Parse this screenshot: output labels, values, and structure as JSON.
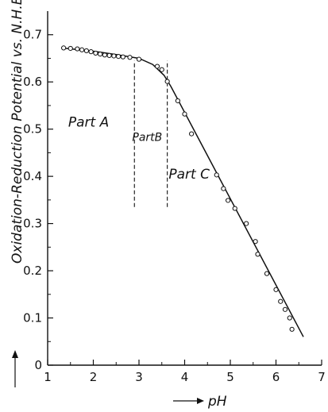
{
  "chart_data": {
    "type": "scatter",
    "xlabel": "pH",
    "ylabel": "Oxidation-Reduction Potential vs. N.H.E.(volt)",
    "xlim": [
      1,
      7
    ],
    "ylim": [
      0,
      0.75
    ],
    "x_ticks": [
      1,
      2,
      3,
      4,
      5,
      6,
      7
    ],
    "y_ticks": [
      0,
      0.1,
      0.2,
      0.3,
      0.4,
      0.5,
      0.6,
      0.7
    ],
    "grid": false,
    "points": [
      {
        "x": 1.35,
        "y": 0.672
      },
      {
        "x": 1.5,
        "y": 0.671
      },
      {
        "x": 1.65,
        "y": 0.67
      },
      {
        "x": 1.75,
        "y": 0.668
      },
      {
        "x": 1.85,
        "y": 0.666
      },
      {
        "x": 1.95,
        "y": 0.664
      },
      {
        "x": 2.05,
        "y": 0.661
      },
      {
        "x": 2.15,
        "y": 0.659
      },
      {
        "x": 2.25,
        "y": 0.657
      },
      {
        "x": 2.35,
        "y": 0.656
      },
      {
        "x": 2.45,
        "y": 0.655
      },
      {
        "x": 2.55,
        "y": 0.654
      },
      {
        "x": 2.65,
        "y": 0.653
      },
      {
        "x": 2.8,
        "y": 0.652
      },
      {
        "x": 3.0,
        "y": 0.648
      },
      {
        "x": 3.4,
        "y": 0.633
      },
      {
        "x": 3.5,
        "y": 0.626
      },
      {
        "x": 3.62,
        "y": 0.601
      },
      {
        "x": 3.85,
        "y": 0.56
      },
      {
        "x": 4.0,
        "y": 0.532
      },
      {
        "x": 4.15,
        "y": 0.49
      },
      {
        "x": 4.7,
        "y": 0.403
      },
      {
        "x": 4.85,
        "y": 0.374
      },
      {
        "x": 4.95,
        "y": 0.349
      },
      {
        "x": 5.1,
        "y": 0.332
      },
      {
        "x": 5.35,
        "y": 0.3
      },
      {
        "x": 5.55,
        "y": 0.262
      },
      {
        "x": 5.6,
        "y": 0.235
      },
      {
        "x": 5.8,
        "y": 0.194
      },
      {
        "x": 6.0,
        "y": 0.16
      },
      {
        "x": 6.1,
        "y": 0.135
      },
      {
        "x": 6.2,
        "y": 0.118
      },
      {
        "x": 6.3,
        "y": 0.1
      },
      {
        "x": 6.35,
        "y": 0.076
      }
    ],
    "curve": [
      {
        "x": 1.3,
        "y": 0.672
      },
      {
        "x": 2.0,
        "y": 0.665
      },
      {
        "x": 2.5,
        "y": 0.658
      },
      {
        "x": 3.0,
        "y": 0.65
      },
      {
        "x": 3.3,
        "y": 0.637
      },
      {
        "x": 3.55,
        "y": 0.614
      },
      {
        "x": 3.7,
        "y": 0.59
      },
      {
        "x": 6.6,
        "y": 0.06
      }
    ],
    "divisions": [
      2.9,
      3.62
    ],
    "division_range": [
      0.335,
      0.645
    ],
    "annotations": [
      {
        "text": "Part A",
        "x": 1.45,
        "y": 0.505,
        "size": 17
      },
      {
        "text": "PartB",
        "x": 2.85,
        "y": 0.475,
        "size": 14
      },
      {
        "text": "Part C",
        "x": 3.65,
        "y": 0.395,
        "size": 17
      }
    ]
  }
}
